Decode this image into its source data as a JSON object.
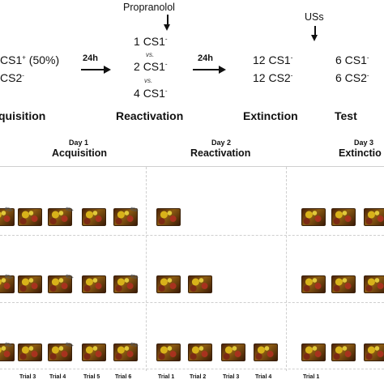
{
  "schematic": {
    "drug_label": "Propranolol",
    "us_label": "USs",
    "acquisition_lines": [
      "CS1",
      "(50%)",
      "CS2"
    ],
    "arrow1_label": "24h",
    "arrow2_label": "24h",
    "reactivation_options": [
      {
        "count": "1",
        "cs": "CS1"
      },
      {
        "count": "2",
        "cs": "CS1"
      },
      {
        "count": "4",
        "cs": "CS1"
      }
    ],
    "vs_label": "vs.",
    "extinction_lines": [
      "12 CS1",
      "12 CS2"
    ],
    "test_lines": [
      "6 CS1",
      "6 CS2"
    ],
    "stages": {
      "acquisition": "quisition",
      "reactivation": "Reactivation",
      "extinction": "Extinction",
      "test": "Test"
    }
  },
  "timeline": {
    "days": [
      {
        "day": "Day 1",
        "phase": "Acquisition"
      },
      {
        "day": "Day 2",
        "phase": "Reactivation"
      },
      {
        "day": "Day 3",
        "phase": "Extinctio"
      }
    ],
    "acquisition_trials": [
      "Trial 3",
      "Trial 4",
      "Trial 5",
      "Trial 6"
    ],
    "reactivation_trials": [
      "Trial 1",
      "Trial 2",
      "Trial 3",
      "Trial 4"
    ],
    "extinction_trials": [
      "Trial 1"
    ],
    "rows": [
      {
        "reactivation_trials_shown": 1
      },
      {
        "reactivation_trials_shown": 2
      },
      {
        "reactivation_trials_shown": 4
      }
    ]
  }
}
